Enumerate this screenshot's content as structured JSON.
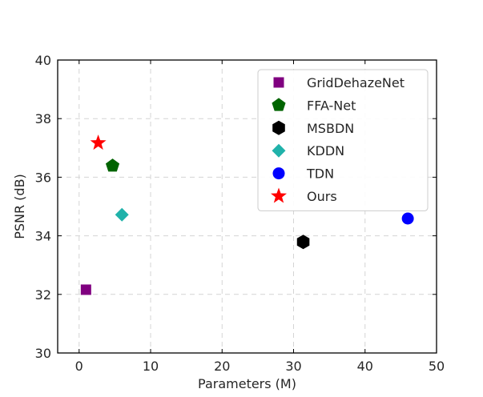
{
  "chart_data": {
    "type": "scatter",
    "title": "",
    "xlabel": "Parameters (M)",
    "ylabel": "PSNR (dB)",
    "xlim": [
      -3,
      50
    ],
    "ylim": [
      30,
      40
    ],
    "xticks": [
      0,
      10,
      20,
      30,
      40,
      50
    ],
    "yticks": [
      30,
      32,
      34,
      36,
      38,
      40
    ],
    "grid": true,
    "legend_position": "top-right",
    "series": [
      {
        "name": "GridDehazeNet",
        "x": 0.96,
        "y": 32.16,
        "marker": "square",
        "color": "#800080"
      },
      {
        "name": "FFA-Net",
        "x": 4.68,
        "y": 36.39,
        "marker": "pentagon",
        "color": "#006400"
      },
      {
        "name": "MSBDN",
        "x": 31.35,
        "y": 33.79,
        "marker": "hexagon",
        "color": "#000000"
      },
      {
        "name": "KDDN",
        "x": 5.99,
        "y": 34.72,
        "marker": "diamond",
        "color": "#20b2aa"
      },
      {
        "name": "TDN",
        "x": 45.98,
        "y": 34.59,
        "marker": "circle",
        "color": "#0000ff"
      },
      {
        "name": "Ours",
        "x": 2.67,
        "y": 37.17,
        "marker": "star",
        "color": "#ff0000"
      }
    ]
  }
}
